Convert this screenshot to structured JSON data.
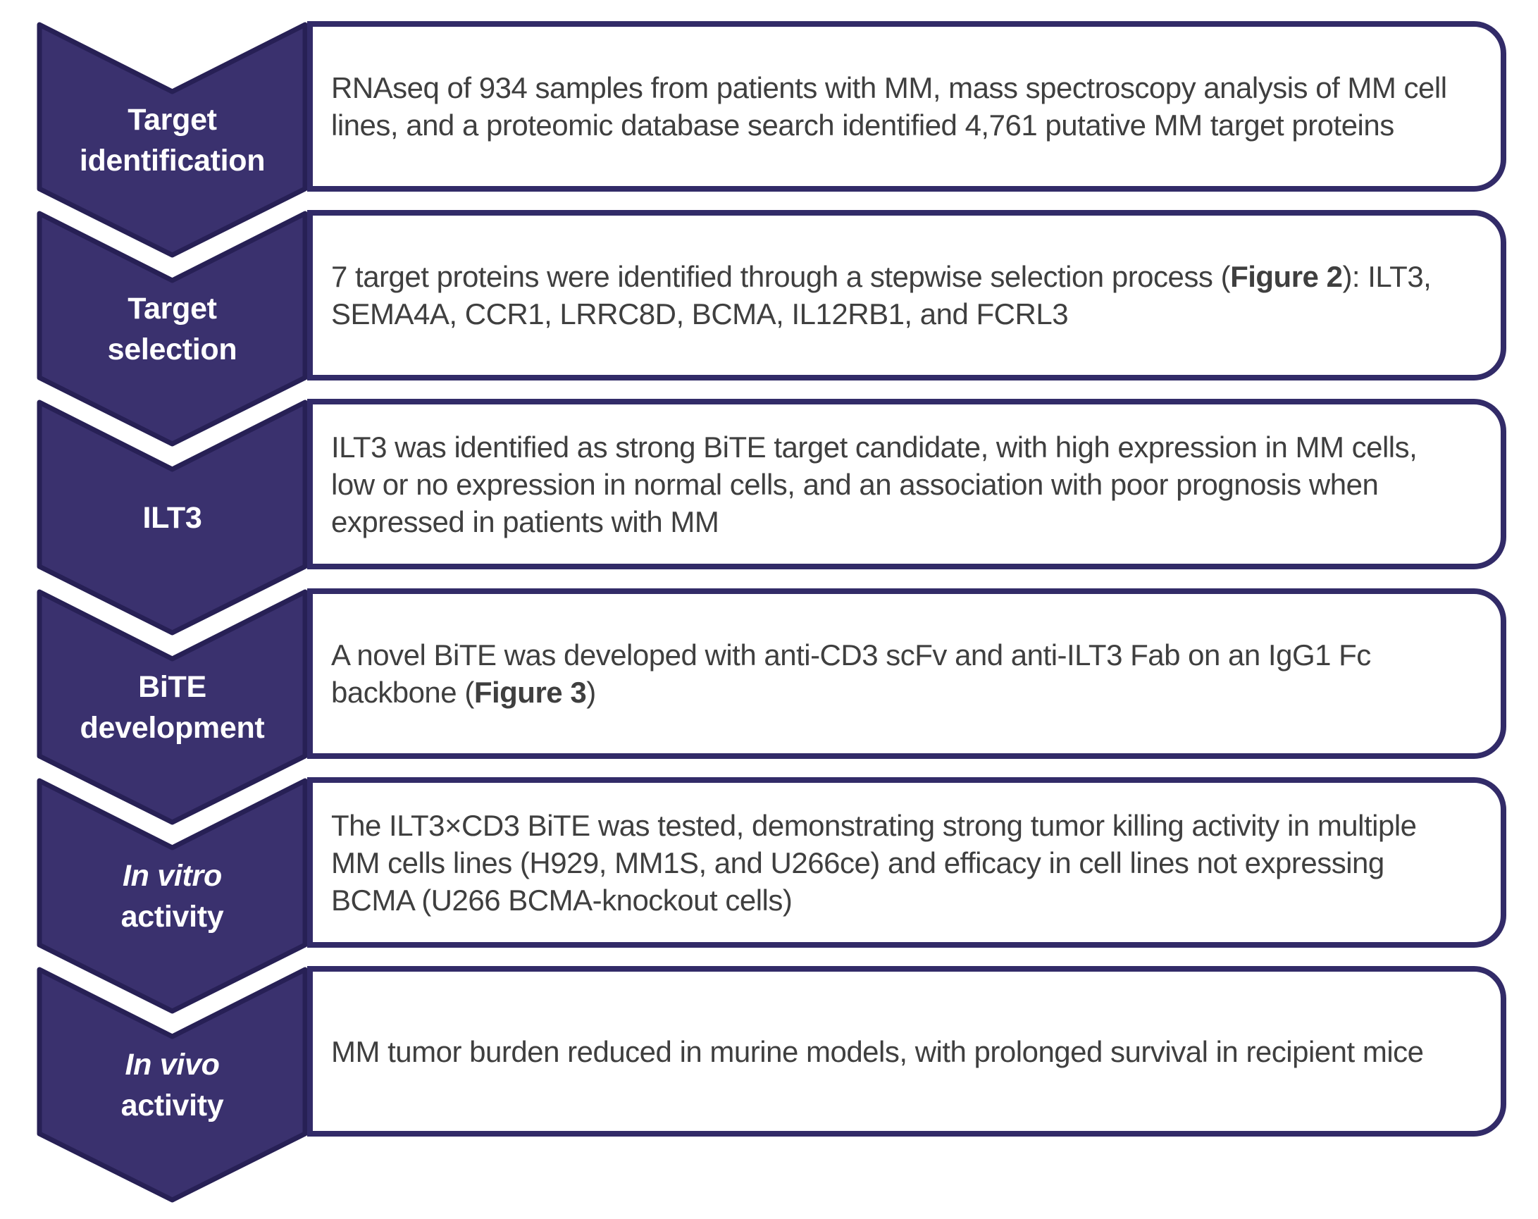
{
  "figure": {
    "colors": {
      "background": "#ffffff",
      "chevron_fill": "#3a316e",
      "chevron_border": "#272055",
      "box_border": "#322b68",
      "text_color": "#3f3f3f",
      "label_color": "#ffffff"
    },
    "steps": [
      {
        "label_lines": [
          {
            "text": "Target",
            "italic": false
          },
          {
            "text": "identification",
            "italic": false
          }
        ],
        "box_parts": [
          {
            "text": "RNAseq of 934 samples from patients with MM, mass spectroscopy analysis of MM cell lines, and a proteomic database search identified 4,761 putative MM target proteins",
            "bold": false
          }
        ]
      },
      {
        "label_lines": [
          {
            "text": "Target",
            "italic": false
          },
          {
            "text": "selection",
            "italic": false
          }
        ],
        "box_parts": [
          {
            "text": "7 target proteins were identified through a stepwise selection process (",
            "bold": false
          },
          {
            "text": "Figure 2",
            "bold": true
          },
          {
            "text": "): ILT3, SEMA4A, CCR1, LRRC8D, BCMA, IL12RB1, and FCRL3",
            "bold": false
          }
        ]
      },
      {
        "label_lines": [
          {
            "text": "ILT3",
            "italic": false
          }
        ],
        "box_parts": [
          {
            "text": "ILT3 was identified as strong BiTE target candidate, with high expression in MM cells, low or no expression in normal cells, and an association with poor prognosis when expressed in patients with MM",
            "bold": false
          }
        ]
      },
      {
        "label_lines": [
          {
            "text": "BiTE",
            "italic": false
          },
          {
            "text": "development",
            "italic": false
          }
        ],
        "box_parts": [
          {
            "text": "A novel BiTE was developed with anti-CD3 scFv and anti-ILT3 Fab on an IgG1 Fc backbone (",
            "bold": false
          },
          {
            "text": "Figure 3",
            "bold": true
          },
          {
            "text": ")",
            "bold": false
          }
        ]
      },
      {
        "label_lines": [
          {
            "text": "In vitro",
            "italic": true
          },
          {
            "text": "activity",
            "italic": false
          }
        ],
        "box_parts": [
          {
            "text": "The ILT3×CD3 BiTE was tested, demonstrating strong tumor killing activity in multiple MM cells lines (H929, MM1S, and U266ce) and efficacy in cell lines not expressing BCMA (U266 BCMA-knockout cells)",
            "bold": false
          }
        ]
      },
      {
        "label_lines": [
          {
            "text": "In vivo",
            "italic": true
          },
          {
            "text": "activity",
            "italic": false
          }
        ],
        "box_parts": [
          {
            "text": "MM tumor burden reduced in murine models, with prolonged survival in recipient mice",
            "bold": false
          }
        ]
      }
    ]
  }
}
